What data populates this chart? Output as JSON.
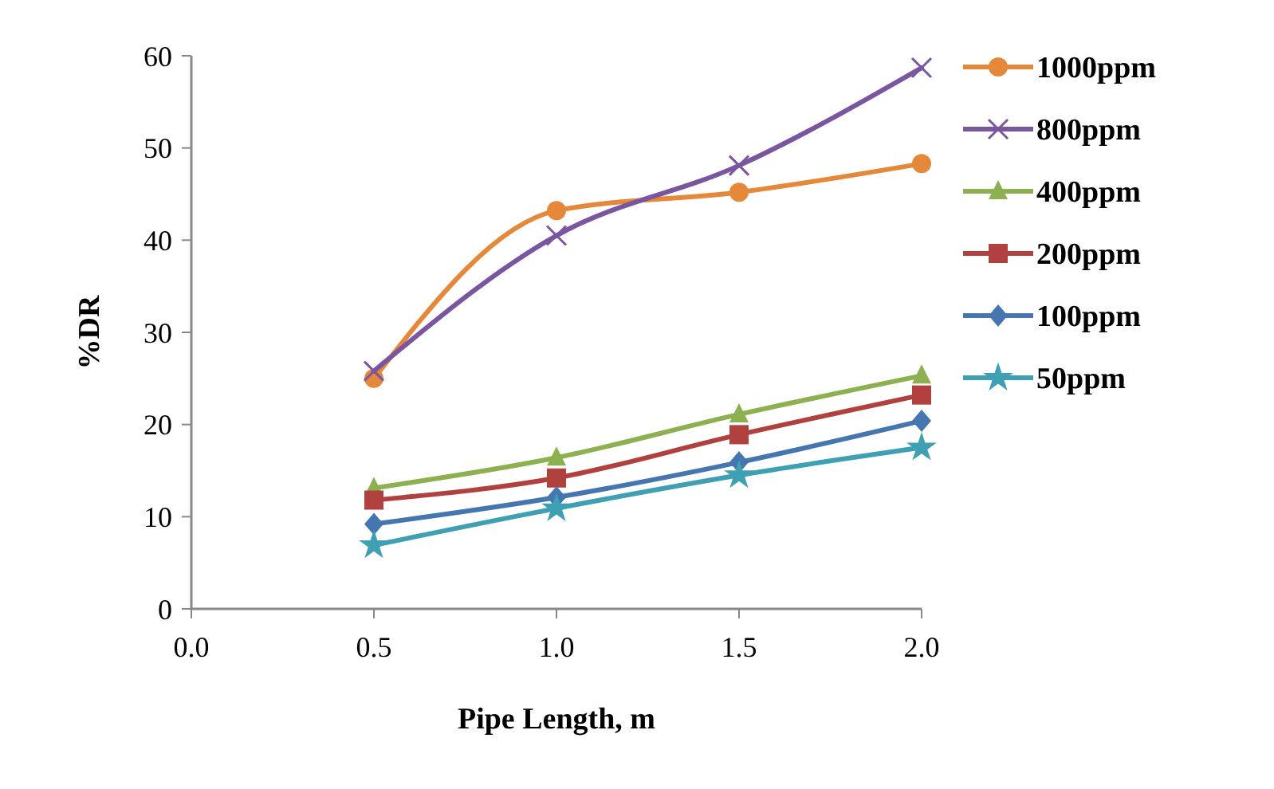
{
  "chart_data": {
    "type": "line",
    "xlabel": "Pipe Length, m",
    "ylabel": "%DR",
    "x": [
      0.5,
      1.0,
      1.5,
      2.0
    ],
    "xlim": [
      0,
      2
    ],
    "xticks": [
      {
        "value": 0,
        "label": "0.0"
      },
      {
        "value": 0.5,
        "label": "0.5"
      },
      {
        "value": 1,
        "label": "1.0"
      },
      {
        "value": 1.5,
        "label": "1.5"
      },
      {
        "value": 2,
        "label": "2.0"
      }
    ],
    "ylim": [
      0,
      60
    ],
    "yticks": [
      0,
      10,
      20,
      30,
      40,
      50,
      60
    ],
    "grid": false,
    "legend": "right",
    "line_style": "solid",
    "series": [
      {
        "name": "1000ppm",
        "color": "#e6883a",
        "marker": "circle",
        "values": [
          25,
          43.2,
          45.2,
          48.3
        ]
      },
      {
        "name": "800ppm",
        "color": "#7a56a0",
        "marker": "cross",
        "values": [
          25.8,
          40.5,
          48.1,
          58.7
        ]
      },
      {
        "name": "400ppm",
        "color": "#8db050",
        "marker": "triangle",
        "values": [
          13.1,
          16.4,
          21.1,
          25.3
        ]
      },
      {
        "name": "200ppm",
        "color": "#b0413e",
        "marker": "square",
        "values": [
          11.8,
          14.2,
          18.9,
          23.2
        ]
      },
      {
        "name": "100ppm",
        "color": "#4576b0",
        "marker": "diamond",
        "values": [
          9.2,
          12.1,
          15.9,
          20.4
        ]
      },
      {
        "name": "50ppm",
        "color": "#3fa0b4",
        "marker": "star",
        "values": [
          6.9,
          10.9,
          14.5,
          17.5
        ]
      }
    ]
  }
}
